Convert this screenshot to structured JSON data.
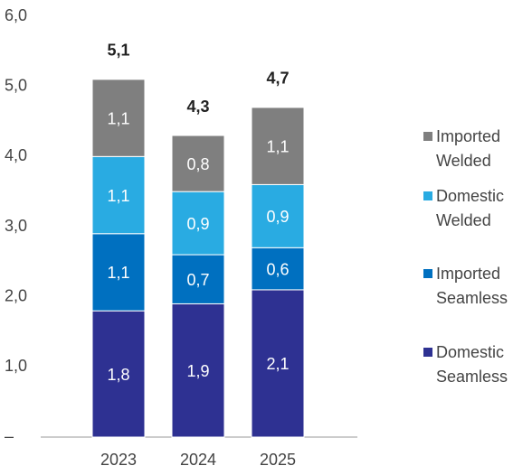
{
  "chart_data": {
    "type": "stacked_bar",
    "categories": [
      "2023",
      "2024",
      "2025"
    ],
    "series": [
      {
        "name": "Domestic Seamless",
        "color": "#2e3192",
        "values": [
          1.8,
          1.9,
          2.1
        ],
        "value_labels": [
          "1,8",
          "1,9",
          "2,1"
        ]
      },
      {
        "name": "Imported Seamless",
        "color": "#0070c0",
        "values": [
          1.1,
          0.7,
          0.6
        ],
        "value_labels": [
          "1,1",
          "0,7",
          "0,6"
        ]
      },
      {
        "name": "Domestic Welded",
        "color": "#29abe2",
        "values": [
          1.1,
          0.9,
          0.9
        ],
        "value_labels": [
          "1,1",
          "0,9",
          "0,9"
        ]
      },
      {
        "name": "Imported Welded",
        "color": "#7f7f7f",
        "values": [
          1.1,
          0.8,
          1.1
        ],
        "value_labels": [
          "1,1",
          "0,8",
          "1,1"
        ]
      }
    ],
    "totals": [
      5.1,
      4.3,
      4.7
    ],
    "total_labels": [
      "5,1",
      "4,3",
      "4,7"
    ],
    "ylim": [
      0,
      6
    ],
    "yticks": [
      {
        "value": 0,
        "label": "–"
      },
      {
        "value": 1,
        "label": "1,0"
      },
      {
        "value": 2,
        "label": "2,0"
      },
      {
        "value": 3,
        "label": "3,0"
      },
      {
        "value": 4,
        "label": "4,0"
      },
      {
        "value": 5,
        "label": "5,0"
      },
      {
        "value": 6,
        "label": "6,0"
      }
    ],
    "legend": "right"
  }
}
